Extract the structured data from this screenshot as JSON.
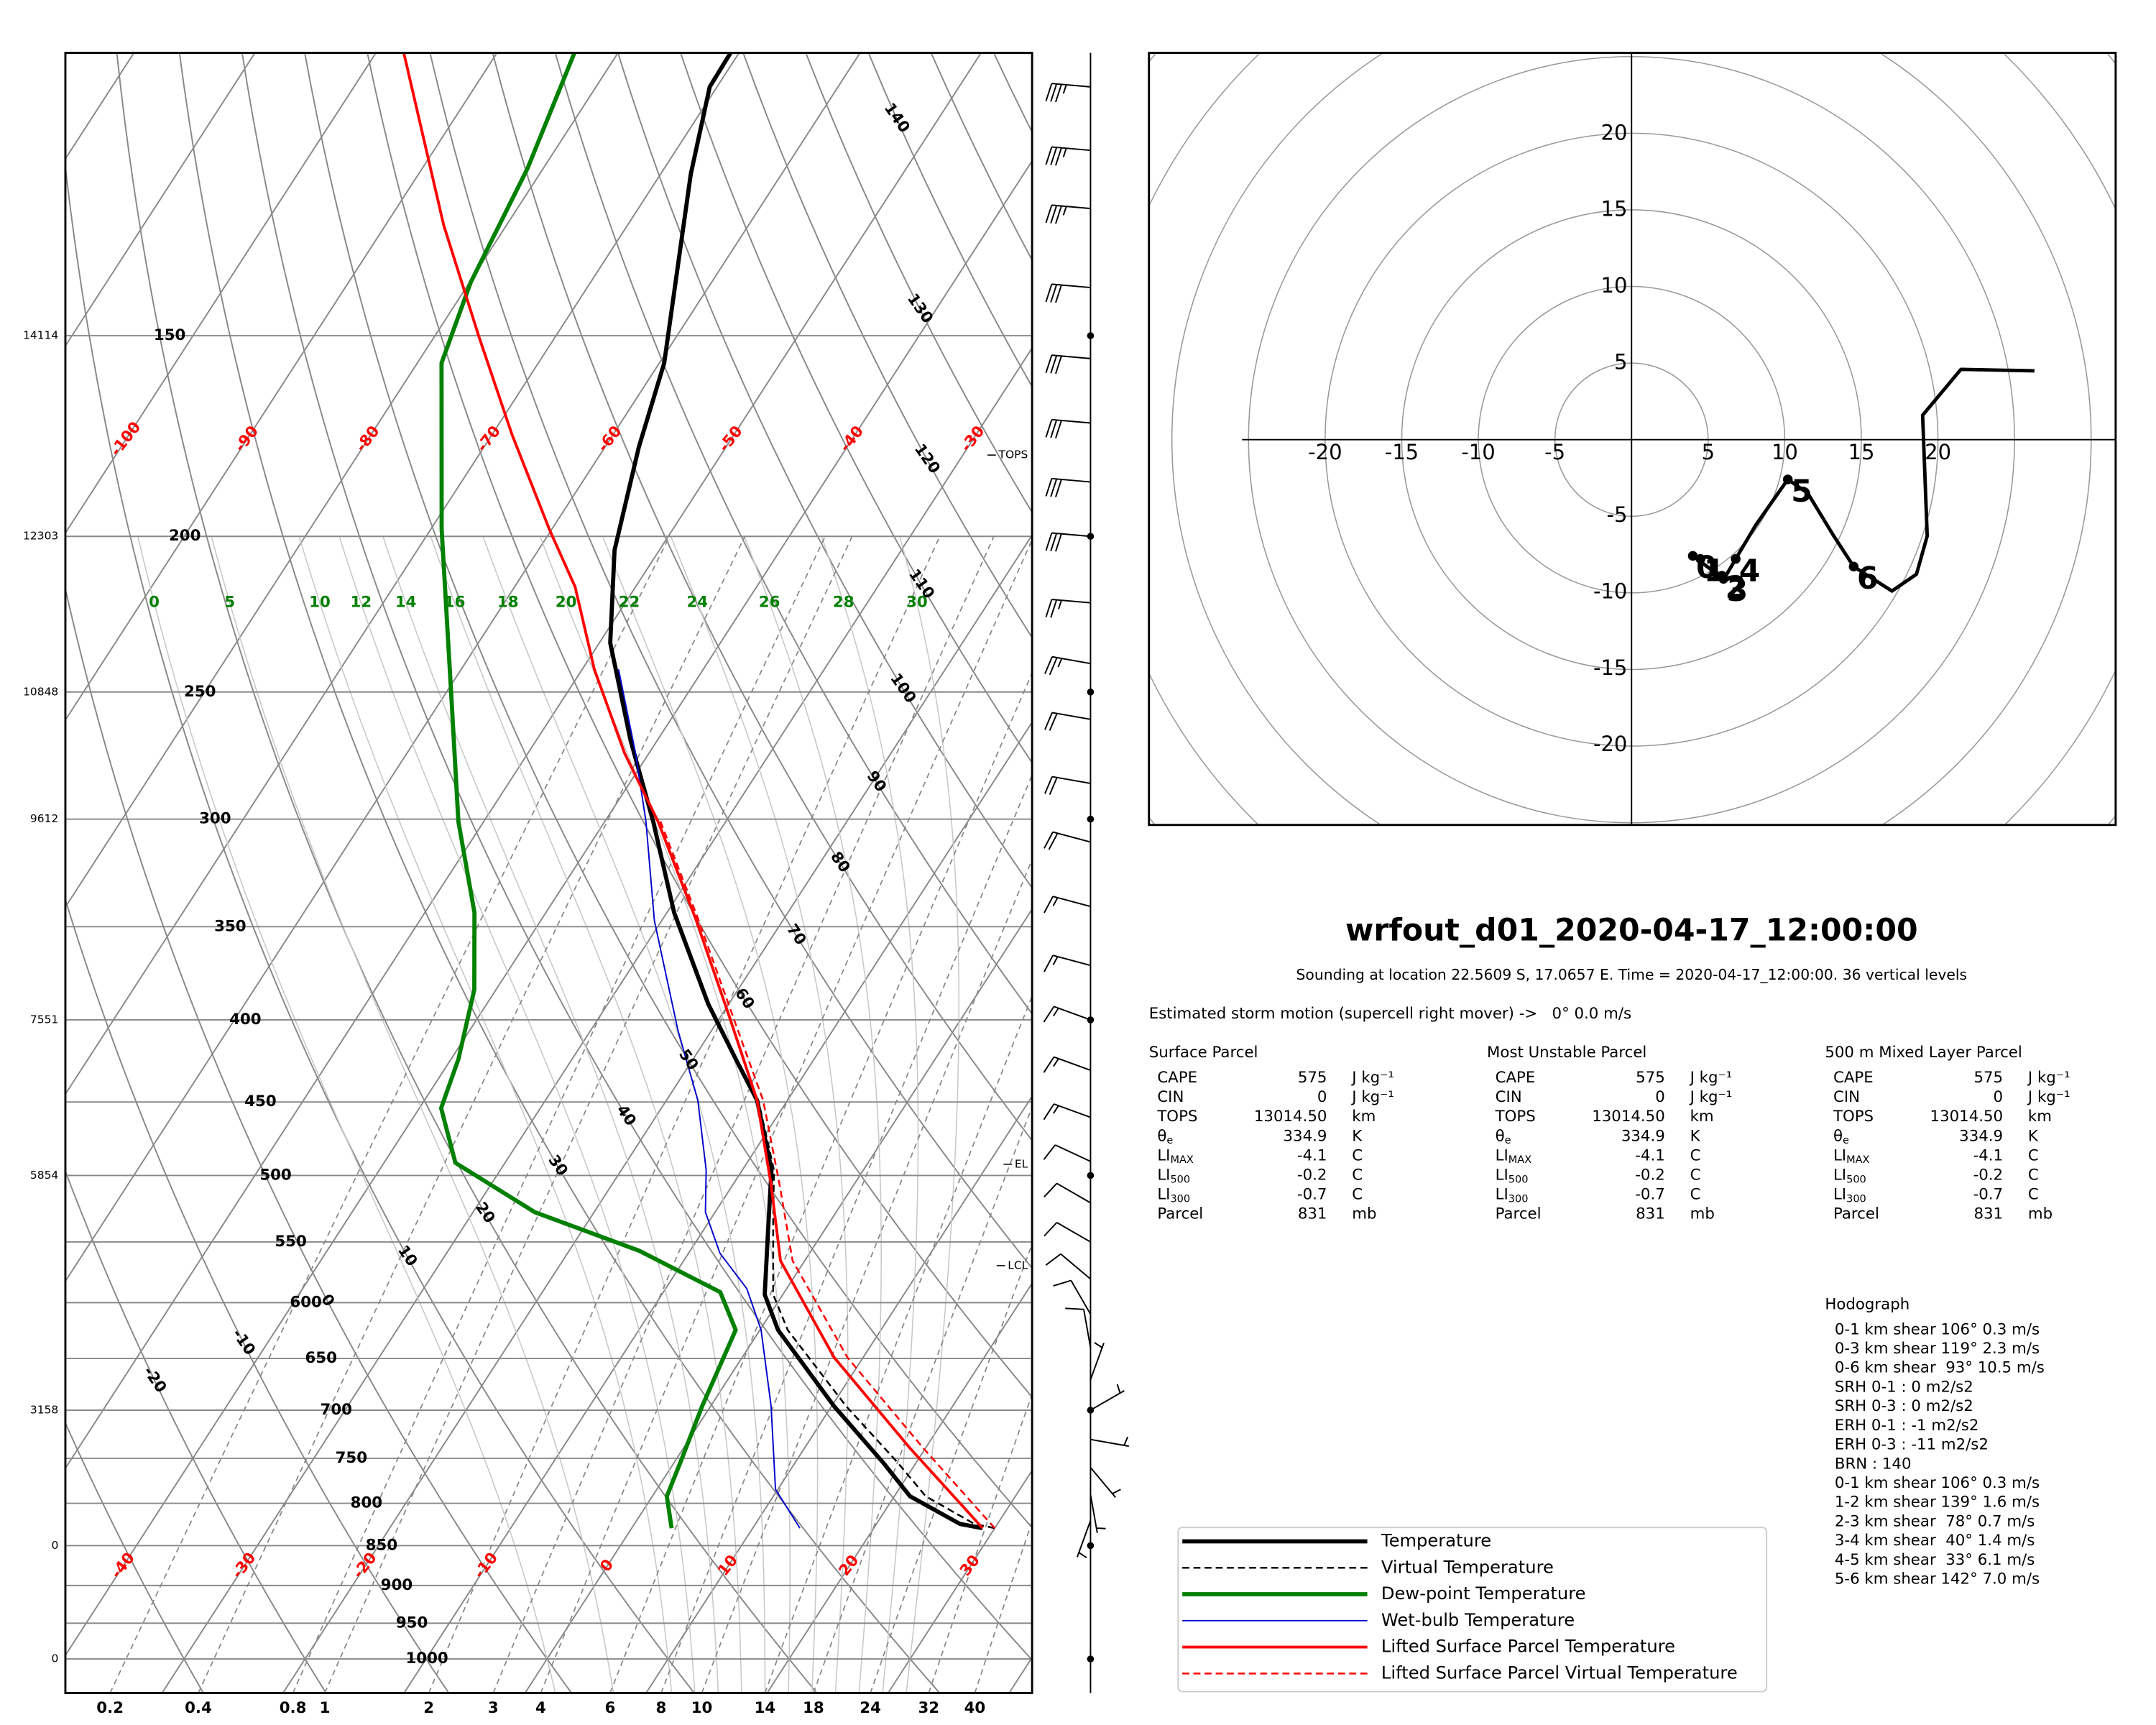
{
  "chart_data": [
    {
      "type": "skewt",
      "ylim": [
        1050,
        100
      ],
      "yticks": [
        150,
        200,
        250,
        300,
        350,
        400,
        450,
        500,
        550,
        600,
        650,
        700,
        750,
        800,
        850,
        900,
        950,
        1000
      ],
      "heights_pressure": [
        150,
        200,
        250,
        300,
        400,
        500,
        700,
        850,
        1000
      ],
      "heights": [
        14114,
        12303,
        10848,
        9612,
        7551,
        5854,
        3158,
        0,
        0
      ],
      "isotherms": [
        -150,
        -140,
        -130,
        -120,
        -110,
        -100,
        -90,
        -80,
        -70,
        -60,
        -50,
        -40,
        -30,
        -20,
        -10,
        0,
        10,
        20,
        30,
        40
      ],
      "isotherm_labels_top": [
        -100,
        -90,
        -80,
        -70,
        -60,
        -50,
        -40,
        -30
      ],
      "isotherm_labels_bottom": [
        -40,
        -30,
        -20,
        -10,
        0,
        10,
        20,
        30
      ],
      "dry_adiabats": [
        -30,
        -20,
        -10,
        0,
        10,
        20,
        30,
        40,
        50,
        60,
        70,
        80,
        90,
        100,
        110,
        120,
        130,
        140,
        150,
        160,
        170
      ],
      "dry_adiabat_labels": [
        -20,
        -10,
        0,
        10,
        20,
        30,
        40,
        50,
        60,
        70,
        80,
        90,
        100,
        110,
        120,
        130,
        140
      ],
      "moist_adiabats": [
        0,
        5,
        10,
        12,
        14,
        16,
        18,
        20,
        22,
        24,
        26,
        28,
        30
      ],
      "mixing_ratios": [
        0.2,
        0.4,
        0.8,
        1,
        2,
        3,
        4,
        6,
        8,
        10,
        14,
        18,
        24,
        32,
        40
      ],
      "series": [
        {
          "name": "Temperature",
          "color": "#000000",
          "width": 3,
          "dashed": false,
          "pressure": [
            829,
            824,
            792,
            754,
            696,
            624,
            593,
            537,
            496,
            449,
            423,
            391,
            343,
            301,
            268,
            233,
            204,
            176,
            156,
            119,
            105,
            100
          ],
          "values": [
            29.0,
            26.9,
            21.3,
            17.2,
            10.2,
            1.5,
            -1.5,
            -4.9,
            -7.6,
            -12.5,
            -16.5,
            -21.7,
            -29.4,
            -36.0,
            -42.2,
            -49.1,
            -53.7,
            -57.2,
            -59.6,
            -67.5,
            -70.6,
            -70.7
          ]
        },
        {
          "name": "Virtual Temperature",
          "color": "#000000",
          "width": 1.3,
          "dashed": true,
          "pressure": [
            829,
            824,
            792,
            754,
            696,
            624,
            593,
            537,
            496,
            449,
            423,
            391,
            343,
            301
          ],
          "values": [
            30.0,
            28.1,
            22.6,
            18.4,
            11.2,
            2.3,
            -0.8,
            -4.5,
            -7.4,
            -12.4,
            -16.4,
            -21.6,
            -29.3,
            -36.0
          ]
        },
        {
          "name": "Dew-point Temperature",
          "color": "#008000",
          "width": 3,
          "dashed": false,
          "pressure": [
            829,
            792,
            754,
            696,
            624,
            591,
            557,
            527,
            491,
            454,
            423,
            383,
            343,
            301,
            252,
            198,
            156,
            139,
            118,
            100
          ],
          "values": [
            3.3,
            1.2,
            0.5,
            -0.7,
            -2.0,
            -5.3,
            -14.2,
            -24.9,
            -34.1,
            -38.2,
            -39.4,
            -41.8,
            -45.9,
            -52.1,
            -59.3,
            -69.1,
            -78.0,
            -79.9,
            -81.3,
            -83.6
          ]
        },
        {
          "name": "Wet-bulb Temperature",
          "color": "#0000cc",
          "width": 1,
          "dashed": false,
          "pressure": [
            829,
            784,
            696,
            624,
            588,
            559,
            527,
            496,
            449,
            406,
            347,
            301,
            273,
            242
          ],
          "values": [
            13.9,
            9.8,
            5.0,
            0.1,
            -3.3,
            -7.4,
            -10.8,
            -13.0,
            -17.4,
            -22.8,
            -30.6,
            -36.6,
            -41.1,
            -47.0
          ]
        },
        {
          "name": "Lifted Surface Parcel Temperature",
          "color": "#ff0000",
          "width": 2,
          "dashed": false,
          "pressure": [
            829,
            739,
            649,
            565,
            506,
            449,
            398,
            346,
            301,
            273,
            242,
            215,
            198,
            173,
            150,
            128,
            100
          ],
          "values": [
            29.0,
            18.7,
            7.6,
            -2.0,
            -6.9,
            -12.5,
            -19.3,
            -27.3,
            -35.6,
            -42.0,
            -49.0,
            -55.0,
            -60.2,
            -68.3,
            -76.4,
            -85.2,
            -97.7
          ]
        },
        {
          "name": "Lifted Surface Parcel Virtual Temperature",
          "color": "#ff0000",
          "width": 1.3,
          "dashed": true,
          "pressure": [
            829,
            739,
            649,
            565,
            506,
            449,
            398,
            346,
            301
          ],
          "values": [
            30.0,
            19.8,
            8.7,
            -1.0,
            -6.2,
            -12.0,
            -19.0,
            -27.1,
            -35.4
          ]
        }
      ],
      "annotations": [
        {
          "label": "TOPS",
          "pressure": 178
        },
        {
          "label": "EL",
          "pressure": 492
        },
        {
          "label": "LCL",
          "pressure": 569
        }
      ],
      "wind": {
        "pressure": [
          105,
          115,
          125,
          140,
          155,
          170,
          185,
          200,
          220,
          240,
          260,
          285,
          310,
          340,
          370,
          400,
          430,
          460,
          490,
          520,
          550,
          580,
          610,
          640,
          670,
          700,
          730,
          760,
          790,
          820
        ],
        "speed": [
          35,
          35,
          35,
          30,
          30,
          30,
          30,
          30,
          25,
          25,
          20,
          20,
          20,
          15,
          15,
          15,
          15,
          15,
          10,
          10,
          10,
          10,
          10,
          10,
          5,
          5,
          5,
          5,
          5,
          5
        ],
        "direction": [
          275,
          275,
          275,
          275,
          275,
          275,
          275,
          275,
          275,
          280,
          280,
          280,
          285,
          285,
          285,
          290,
          290,
          290,
          295,
          300,
          300,
          310,
          330,
          350,
          20,
          60,
          100,
          140,
          170,
          200
        ]
      }
    },
    {
      "type": "hodograph",
      "xlim": [
        -31.5,
        31.6
      ],
      "ylim": [
        -25.2,
        25.3
      ],
      "xticks": [
        -20,
        -15,
        -10,
        -5,
        5,
        10,
        15,
        20
      ],
      "yticks": [
        20,
        15,
        10,
        5,
        -5,
        -10,
        -15,
        -20
      ],
      "rings": [
        5,
        10,
        15,
        20,
        25,
        30,
        35,
        40
      ],
      "u": [
        4.0,
        5.2,
        6.1,
        6.8,
        8.1,
        10.2,
        11.5,
        13.2,
        14.5,
        17.0,
        18.6,
        19.3,
        19.0,
        21.5,
        26.3
      ],
      "v": [
        -7.6,
        -8.5,
        -9.0,
        -7.8,
        -5.6,
        -2.6,
        -3.5,
        -6.3,
        -8.3,
        -9.9,
        -8.8,
        -6.3,
        1.6,
        4.6,
        4.5
      ],
      "markers": {
        "labels": [
          0,
          1,
          2,
          3,
          4,
          5,
          6
        ],
        "u": [
          4.0,
          4.5,
          5.9,
          6.0,
          6.8,
          10.2,
          14.5
        ],
        "v": [
          -7.6,
          -7.8,
          -8.9,
          -9.1,
          -7.8,
          -2.6,
          -8.3
        ]
      }
    }
  ],
  "info": {
    "title": "wrfout_d01_2020-04-17_12:00:00",
    "subtitle": "Sounding at location 22.5609 S, 17.0657 E. Time = 2020-04-17_12:00:00. 36 vertical levels",
    "storm_motion": "Estimated storm motion (supercell right mover) ->   0° 0.0 m/s",
    "parcels": [
      {
        "title": "Surface Parcel",
        "rows": [
          {
            "name": "CAPE",
            "value": 575,
            "unit": "J kg⁻¹"
          },
          {
            "name": "CIN",
            "value": 0,
            "unit": "J kg⁻¹"
          },
          {
            "name": "TOPS",
            "value": "13014.50",
            "unit": "km"
          },
          {
            "name": "θ",
            "sub": "e",
            "value": 334.9,
            "unit": "K"
          },
          {
            "name": "LI",
            "sub": "MAX",
            "value": -4.1,
            "unit": "C"
          },
          {
            "name": "LI",
            "sub": "500",
            "value": -0.2,
            "unit": "C"
          },
          {
            "name": "LI",
            "sub": "300",
            "value": -0.7,
            "unit": "C"
          },
          {
            "name": "Parcel",
            "value": 831,
            "unit": "mb"
          }
        ]
      },
      {
        "title": "Most Unstable Parcel",
        "rows": [
          {
            "name": "CAPE",
            "value": 575,
            "unit": "J kg⁻¹"
          },
          {
            "name": "CIN",
            "value": 0,
            "unit": "J kg⁻¹"
          },
          {
            "name": "TOPS",
            "value": "13014.50",
            "unit": "km"
          },
          {
            "name": "θ",
            "sub": "e",
            "value": 334.9,
            "unit": "K"
          },
          {
            "name": "LI",
            "sub": "MAX",
            "value": -4.1,
            "unit": "C"
          },
          {
            "name": "LI",
            "sub": "500",
            "value": -0.2,
            "unit": "C"
          },
          {
            "name": "LI",
            "sub": "300",
            "value": -0.7,
            "unit": "C"
          },
          {
            "name": "Parcel",
            "value": 831,
            "unit": "mb"
          }
        ]
      },
      {
        "title": "500 m Mixed Layer Parcel",
        "rows": [
          {
            "name": "CAPE",
            "value": 575,
            "unit": "J kg⁻¹"
          },
          {
            "name": "CIN",
            "value": 0,
            "unit": "J kg⁻¹"
          },
          {
            "name": "TOPS",
            "value": "13014.50",
            "unit": "km"
          },
          {
            "name": "θ",
            "sub": "e",
            "value": 334.9,
            "unit": "K"
          },
          {
            "name": "LI",
            "sub": "MAX",
            "value": -4.1,
            "unit": "C"
          },
          {
            "name": "LI",
            "sub": "500",
            "value": -0.2,
            "unit": "C"
          },
          {
            "name": "LI",
            "sub": "300",
            "value": -0.7,
            "unit": "C"
          },
          {
            "name": "Parcel",
            "value": 831,
            "unit": "mb"
          }
        ]
      }
    ],
    "hodograph_title": "Hodograph",
    "hodograph_lines": [
      "0-1 km shear 106° 0.3 m/s",
      "0-3 km shear 119° 2.3 m/s",
      "0-6 km shear  93° 10.5 m/s",
      "SRH 0-1 : 0 m2/s2",
      "SRH 0-3 : 0 m2/s2",
      "ERH 0-1 : -1 m2/s2",
      "ERH 0-3 : -11 m2/s2",
      "BRN : 140",
      "0-1 km shear 106° 0.3 m/s",
      "1-2 km shear 139° 1.6 m/s",
      "2-3 km shear  78° 0.7 m/s",
      "3-4 km shear  40° 1.4 m/s",
      "4-5 km shear  33° 6.1 m/s",
      "5-6 km shear 142° 7.0 m/s"
    ]
  }
}
